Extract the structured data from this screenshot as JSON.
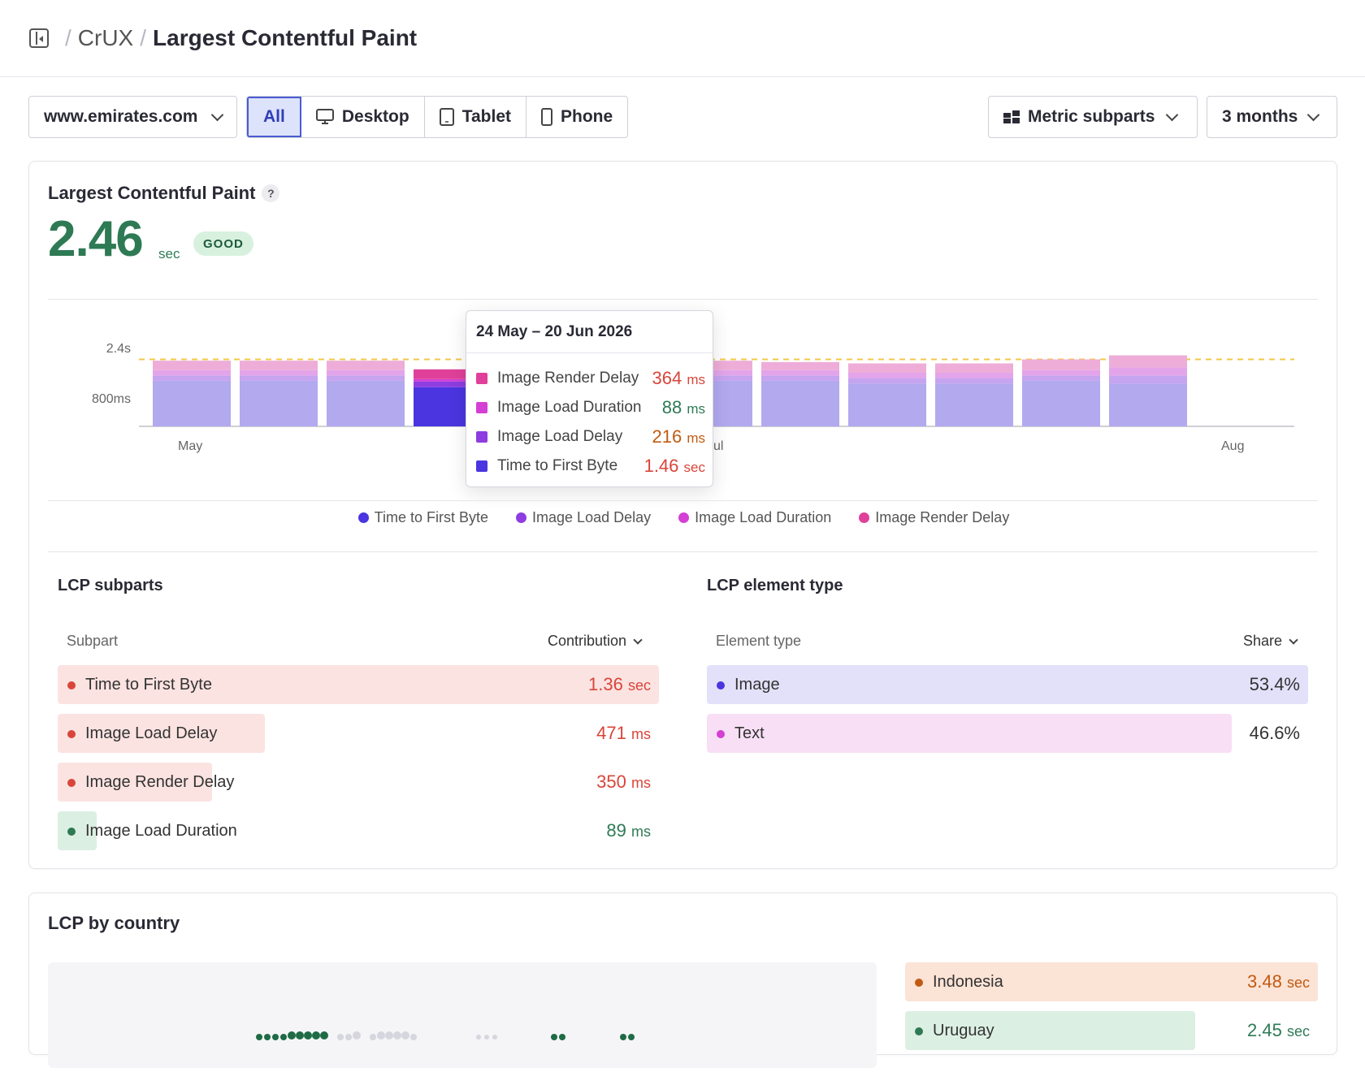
{
  "breadcrumb": {
    "root": "CrUX",
    "page": "Largest Contentful Paint",
    "sep": "/"
  },
  "toolbar": {
    "site": "www.emirates.com",
    "devices": [
      {
        "label": "All",
        "active": true
      },
      {
        "label": "Desktop",
        "icon": "monitor-icon"
      },
      {
        "label": "Tablet",
        "icon": "tablet-icon"
      },
      {
        "label": "Phone",
        "icon": "phone-icon"
      }
    ],
    "view": "Metric subparts",
    "range": "3 months"
  },
  "metric": {
    "title": "Largest Contentful Paint",
    "help": "?",
    "value": "2.46",
    "unit": "sec",
    "badge": "GOOD"
  },
  "chart_data": {
    "type": "bar",
    "stacked": true,
    "y_ticks": [
      "2.4s",
      "800ms"
    ],
    "x_ticks": [
      "May",
      "ul",
      "Aug"
    ],
    "threshold": 2.5,
    "series_colors": [
      "#4a35e0",
      "#8e3de0",
      "#d43fd4",
      "#e0409a"
    ],
    "bars": [
      {
        "ttfb": 1.7,
        "load_delay": 0.2,
        "load_dur": 0.2,
        "render": 0.35
      },
      {
        "ttfb": 1.7,
        "load_delay": 0.2,
        "load_dur": 0.2,
        "render": 0.35
      },
      {
        "ttfb": 1.7,
        "load_delay": 0.2,
        "load_dur": 0.2,
        "render": 0.35
      },
      {
        "ttfb": 1.46,
        "load_delay": 0.216,
        "load_dur": 0.088,
        "render": 0.364,
        "highlight": true
      },
      {
        "ttfb": 1.7,
        "load_delay": 0.2,
        "load_dur": 0.2,
        "render": 0.35
      },
      {
        "ttfb": 1.7,
        "load_delay": 0.2,
        "load_dur": 0.2,
        "render": 0.35
      },
      {
        "ttfb": 1.7,
        "load_delay": 0.2,
        "load_dur": 0.2,
        "render": 0.35
      },
      {
        "ttfb": 1.7,
        "load_delay": 0.2,
        "load_dur": 0.2,
        "render": 0.3
      },
      {
        "ttfb": 1.6,
        "load_delay": 0.2,
        "load_dur": 0.2,
        "render": 0.35
      },
      {
        "ttfb": 1.6,
        "load_delay": 0.2,
        "load_dur": 0.2,
        "render": 0.35
      },
      {
        "ttfb": 1.7,
        "load_delay": 0.2,
        "load_dur": 0.2,
        "render": 0.4
      },
      {
        "ttfb": 1.6,
        "load_delay": 0.3,
        "load_dur": 0.3,
        "render": 0.45
      }
    ]
  },
  "tooltip": {
    "date": "24 May – 20 Jun 2026",
    "rows": [
      {
        "label": "Image Render Delay",
        "value": "364",
        "unit": "ms",
        "color": "#e0409a",
        "vcolor": "#d9453a"
      },
      {
        "label": "Image Load Duration",
        "value": "88",
        "unit": "ms",
        "color": "#d43fd4",
        "vcolor": "#2e7a55"
      },
      {
        "label": "Image Load Delay",
        "value": "216",
        "unit": "ms",
        "color": "#8e3de0",
        "vcolor": "#c25a12"
      },
      {
        "label": "Time to First Byte",
        "value": "1.46",
        "unit": "sec",
        "color": "#4a35e0",
        "vcolor": "#d9453a"
      }
    ]
  },
  "legend": [
    {
      "label": "Time to First Byte",
      "color": "#4a35e0"
    },
    {
      "label": "Image Load Delay",
      "color": "#8e3de0"
    },
    {
      "label": "Image Load Duration",
      "color": "#d43fd4"
    },
    {
      "label": "Image Render Delay",
      "color": "#e0409a"
    }
  ],
  "subparts": {
    "title": "LCP subparts",
    "col1": "Subpart",
    "col2": "Contribution",
    "rows": [
      {
        "label": "Time to First Byte",
        "value": "1.36",
        "unit": "sec",
        "share": 1.0,
        "dot": "#d9453a",
        "bg": "#fbe3e1",
        "vcolor": "#d9453a"
      },
      {
        "label": "Image Load Delay",
        "value": "471",
        "unit": "ms",
        "share": 0.345,
        "dot": "#d9453a",
        "bg": "#fbe3e1",
        "vcolor": "#d9453a"
      },
      {
        "label": "Image Render Delay",
        "value": "350",
        "unit": "ms",
        "share": 0.257,
        "dot": "#d9453a",
        "bg": "#fbe3e1",
        "vcolor": "#d9453a"
      },
      {
        "label": "Image Load Duration",
        "value": "89",
        "unit": "ms",
        "share": 0.065,
        "dot": "#2e7a55",
        "bg": "#dcefe3",
        "vcolor": "#2e7a55"
      }
    ]
  },
  "element_type": {
    "title": "LCP element type",
    "col1": "Element type",
    "col2": "Share",
    "rows": [
      {
        "label": "Image",
        "value": "53.4%",
        "share": 1.0,
        "dot": "#4a35e0",
        "bg": "#e3e0f9"
      },
      {
        "label": "Text",
        "value": "46.6%",
        "share": 0.873,
        "dot": "#d43fd4",
        "bg": "#f8dff5"
      }
    ]
  },
  "country": {
    "title": "LCP by country",
    "rows": [
      {
        "label": "Indonesia",
        "value": "3.48",
        "unit": "sec",
        "share": 1.0,
        "dot": "#c25a12",
        "bg": "#fbe3d6",
        "vcolor": "#c25a12"
      },
      {
        "label": "Uruguay",
        "value": "2.45",
        "unit": "sec",
        "share": 0.7,
        "dot": "#2e7a55",
        "bg": "#dcefe3",
        "vcolor": "#2e7a55"
      }
    ]
  }
}
